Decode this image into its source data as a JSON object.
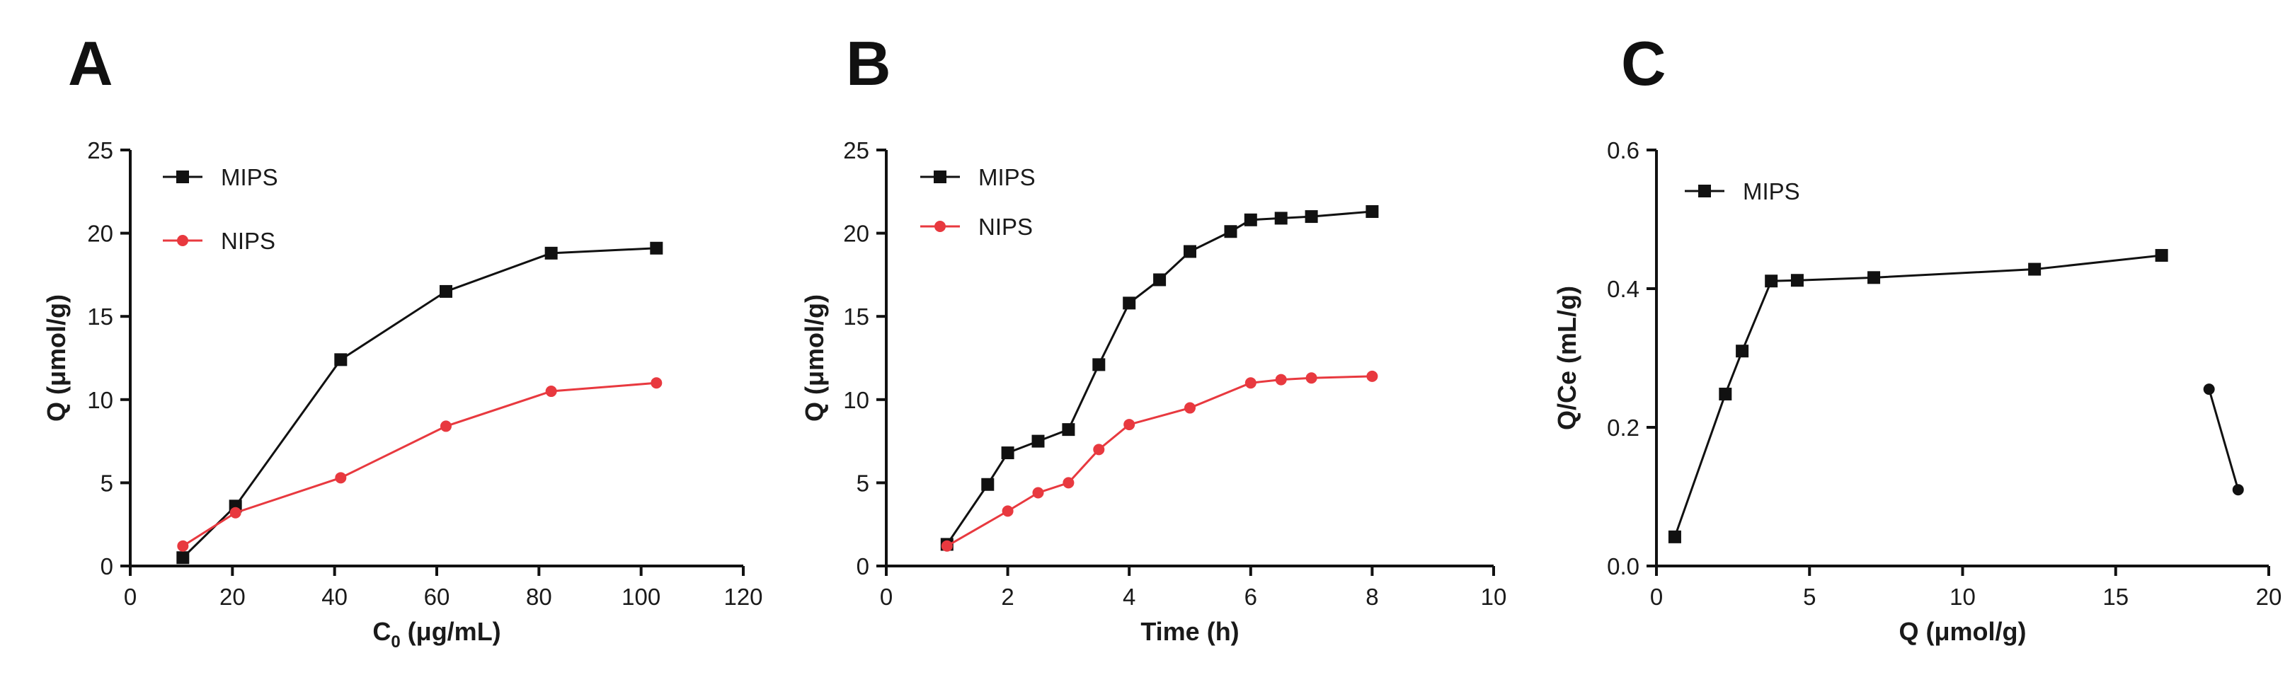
{
  "colors": {
    "MIPS": "#111111",
    "NIPS": "#e8393f",
    "axis": "#111111"
  },
  "chart_data": [
    {
      "id": "A",
      "panel_label": "A",
      "type": "line",
      "title": "",
      "xlabel": "C",
      "xlabel_sub": "0",
      "xlabel_units": " (μg/mL)",
      "ylabel": "Q (μmol/g)",
      "xlim": [
        0,
        120
      ],
      "ylim": [
        0,
        25
      ],
      "xticks": [
        0,
        20,
        40,
        60,
        80,
        100,
        120
      ],
      "yticks": [
        0,
        5,
        10,
        15,
        20,
        25
      ],
      "xtick_labels": [
        "0",
        "20",
        "40",
        "60",
        "80",
        "100",
        "120"
      ],
      "ytick_labels": [
        "0",
        "5",
        "10",
        "15",
        "20",
        "25"
      ],
      "legend": {
        "position": "top-left",
        "entries": [
          "MIPS",
          "NIPS"
        ]
      },
      "series": [
        {
          "name": "MIPS",
          "marker": "square",
          "color": "#111111",
          "points": [
            [
              10.3,
              0.5
            ],
            [
              20.6,
              3.6
            ],
            [
              41.2,
              12.4
            ],
            [
              61.8,
              16.5
            ],
            [
              82.4,
              18.8
            ],
            [
              103,
              19.1
            ]
          ]
        },
        {
          "name": "NIPS",
          "marker": "circle",
          "color": "#e8393f",
          "points": [
            [
              10.3,
              1.2
            ],
            [
              20.6,
              3.2
            ],
            [
              41.2,
              5.3
            ],
            [
              61.8,
              8.4
            ],
            [
              82.4,
              10.5
            ],
            [
              103,
              11.0
            ]
          ]
        }
      ]
    },
    {
      "id": "B",
      "panel_label": "B",
      "type": "line",
      "title": "",
      "xlabel": "Time (h)",
      "ylabel": "Q (μmol/g)",
      "xlim": [
        0,
        10
      ],
      "ylim": [
        0,
        25
      ],
      "xticks": [
        0,
        2,
        4,
        6,
        8,
        10
      ],
      "yticks": [
        0,
        5,
        10,
        15,
        20,
        25
      ],
      "xtick_labels": [
        "0",
        "2",
        "4",
        "6",
        "8",
        "10"
      ],
      "ytick_labels": [
        "0",
        "5",
        "10",
        "15",
        "20",
        "25"
      ],
      "legend": {
        "position": "top-left",
        "entries": [
          "MIPS",
          "NIPS"
        ]
      },
      "series": [
        {
          "name": "MIPS",
          "marker": "square",
          "color": "#111111",
          "points": [
            [
              1,
              1.3
            ],
            [
              1.67,
              4.9
            ],
            [
              2,
              6.8
            ],
            [
              2.5,
              7.5
            ],
            [
              3,
              8.2
            ],
            [
              3.5,
              12.1
            ],
            [
              4,
              15.8
            ],
            [
              4.5,
              17.2
            ],
            [
              5,
              18.9
            ],
            [
              5.67,
              20.1
            ],
            [
              6,
              20.8
            ],
            [
              6.5,
              20.9
            ],
            [
              7,
              21.0
            ],
            [
              8,
              21.3
            ]
          ]
        },
        {
          "name": "NIPS",
          "marker": "circle",
          "color": "#e8393f",
          "points": [
            [
              1,
              1.2
            ],
            [
              2,
              3.3
            ],
            [
              2.5,
              4.4
            ],
            [
              3,
              5.0
            ],
            [
              3.5,
              7.0
            ],
            [
              4,
              8.5
            ],
            [
              5,
              9.5
            ],
            [
              6,
              11.0
            ],
            [
              6.5,
              11.2
            ],
            [
              7,
              11.3
            ],
            [
              8,
              11.4
            ]
          ]
        }
      ]
    },
    {
      "id": "C",
      "panel_label": "C",
      "type": "line",
      "title": "",
      "xlabel": "Q (μmol/g)",
      "ylabel": "Q/Ce (mL/g)",
      "xlim": [
        0,
        20
      ],
      "ylim": [
        0,
        0.6
      ],
      "xticks": [
        0,
        5,
        10,
        15,
        20
      ],
      "yticks": [
        0,
        0.2,
        0.4,
        0.6
      ],
      "xtick_labels": [
        "0",
        "5",
        "10",
        "15",
        "20"
      ],
      "ytick_labels": [
        "0.0",
        "0.2",
        "0.4",
        "0.6"
      ],
      "legend": {
        "position": "top-left",
        "entries": [
          "MIPS"
        ]
      },
      "series": [
        {
          "name": "MIPS",
          "marker": "square",
          "color": "#111111",
          "points": [
            [
              0.6,
              0.042
            ],
            [
              2.25,
              0.248
            ],
            [
              2.8,
              0.31
            ],
            [
              3.75,
              0.411
            ],
            [
              4.6,
              0.412
            ],
            [
              7.1,
              0.416
            ],
            [
              12.35,
              0.428
            ],
            [
              16.5,
              0.448
            ]
          ]
        },
        {
          "name": "",
          "marker": "circle",
          "color": "#111111",
          "points": [
            [
              18.05,
              0.255
            ],
            [
              19,
              0.11
            ]
          ]
        }
      ]
    }
  ]
}
